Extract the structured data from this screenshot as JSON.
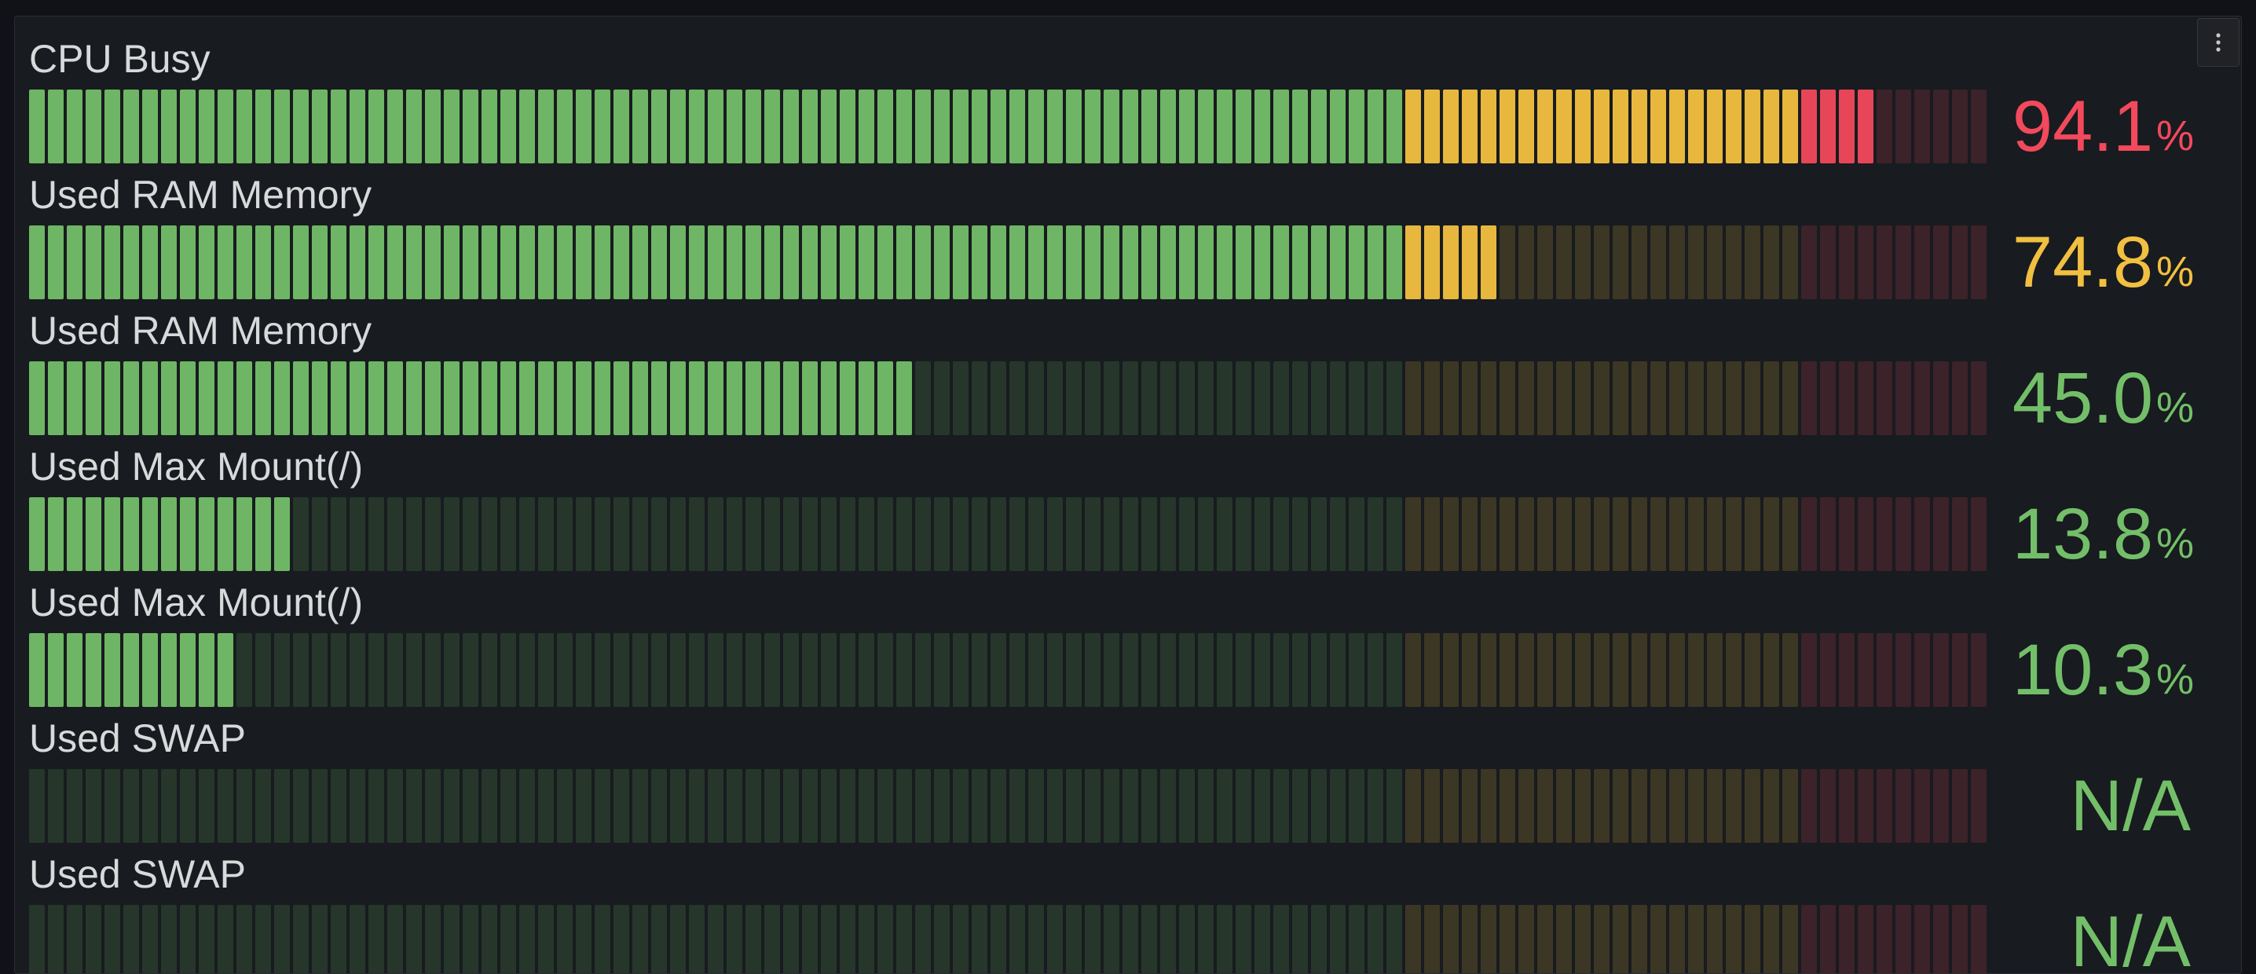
{
  "panel": {
    "menu_icon": "ellipsis-vertical-icon"
  },
  "colors": {
    "green": "#73bf69",
    "yellow": "#f2c040",
    "red": "#f2495c",
    "label": "#d8d9da"
  },
  "gauge": {
    "max": 100,
    "thresholds": [
      {
        "from": 0,
        "to": 70,
        "color": "#73bf69"
      },
      {
        "from": 70,
        "to": 90,
        "color": "#f2c040"
      },
      {
        "from": 90,
        "to": 100,
        "color": "#f2495c"
      }
    ]
  },
  "rows": [
    {
      "label": "CPU Busy",
      "value": 94.1,
      "display": "94.1",
      "unit": "%",
      "color": "#f2495c"
    },
    {
      "label": "Used RAM Memory",
      "value": 74.8,
      "display": "74.8",
      "unit": "%",
      "color": "#f2c040"
    },
    {
      "label": "Used RAM Memory",
      "value": 45.0,
      "display": "45.0",
      "unit": "%",
      "color": "#73bf69"
    },
    {
      "label": "Used Max Mount(/)",
      "value": 13.8,
      "display": "13.8",
      "unit": "%",
      "color": "#73bf69"
    },
    {
      "label": "Used Max Mount(/)",
      "value": 10.3,
      "display": "10.3",
      "unit": "%",
      "color": "#73bf69"
    },
    {
      "label": "Used SWAP",
      "value": null,
      "display": "N/A",
      "unit": "",
      "color": "#73bf69"
    },
    {
      "label": "Used SWAP",
      "value": null,
      "display": "N/A",
      "unit": "",
      "color": "#73bf69"
    }
  ]
}
